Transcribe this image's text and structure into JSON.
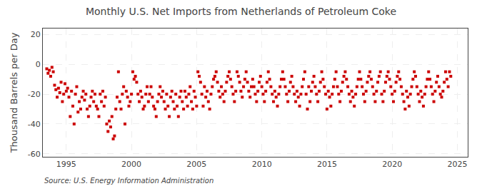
{
  "chart_data": {
    "type": "scatter",
    "title": "Monthly U.S. Net Imports from Netherlands of Petroleum Coke",
    "ylabel": "Thousand Barrels per Day",
    "annotations": [
      "Source: U.S. Energy Information Administration"
    ],
    "color": "#cc0000",
    "marker": "square",
    "grid": true,
    "xlim": [
      1993.2,
      2025.8
    ],
    "ylim": [
      -62,
      24
    ],
    "xticks": [
      1995,
      2000,
      2005,
      2010,
      2015,
      2020,
      2025
    ],
    "yticks": [
      -60,
      -40,
      -20,
      0,
      20
    ],
    "x": [
      1993.5,
      1993.6,
      1993.7,
      1993.8,
      1993.9,
      1994.0,
      1994.1,
      1994.2,
      1994.3,
      1994.4,
      1994.5,
      1994.6,
      1994.7,
      1994.8,
      1994.9,
      1995.0,
      1995.1,
      1995.2,
      1995.3,
      1995.4,
      1995.5,
      1995.6,
      1995.7,
      1995.8,
      1995.9,
      1996.0,
      1996.1,
      1996.2,
      1996.3,
      1996.4,
      1996.5,
      1996.6,
      1996.7,
      1996.8,
      1996.9,
      1997.0,
      1997.1,
      1997.2,
      1997.3,
      1997.4,
      1997.5,
      1997.6,
      1997.7,
      1997.8,
      1997.9,
      1998.0,
      1998.1,
      1998.2,
      1998.3,
      1998.4,
      1998.5,
      1998.6,
      1998.7,
      1998.8,
      1998.9,
      1999.0,
      1999.1,
      1999.2,
      1999.3,
      1999.4,
      1999.5,
      1999.6,
      1999.7,
      1999.8,
      1999.9,
      2000.0,
      2000.1,
      2000.2,
      2000.3,
      2000.4,
      2000.5,
      2000.6,
      2000.7,
      2000.8,
      2000.9,
      2001.0,
      2001.1,
      2001.2,
      2001.3,
      2001.4,
      2001.5,
      2001.6,
      2001.7,
      2001.8,
      2001.9,
      2002.0,
      2002.1,
      2002.2,
      2002.3,
      2002.4,
      2002.5,
      2002.6,
      2002.7,
      2002.8,
      2002.9,
      2003.0,
      2003.1,
      2003.2,
      2003.3,
      2003.4,
      2003.5,
      2003.6,
      2003.7,
      2003.8,
      2003.9,
      2004.0,
      2004.1,
      2004.2,
      2004.3,
      2004.4,
      2004.5,
      2004.6,
      2004.7,
      2004.8,
      2004.9,
      2005.0,
      2005.1,
      2005.2,
      2005.3,
      2005.4,
      2005.5,
      2005.6,
      2005.7,
      2005.8,
      2005.9,
      2006.0,
      2006.1,
      2006.2,
      2006.3,
      2006.4,
      2006.5,
      2006.6,
      2006.7,
      2006.8,
      2006.9,
      2007.0,
      2007.1,
      2007.2,
      2007.3,
      2007.4,
      2007.5,
      2007.6,
      2007.7,
      2007.8,
      2007.9,
      2008.0,
      2008.1,
      2008.2,
      2008.3,
      2008.4,
      2008.5,
      2008.6,
      2008.7,
      2008.8,
      2008.9,
      2009.0,
      2009.1,
      2009.2,
      2009.3,
      2009.4,
      2009.5,
      2009.6,
      2009.7,
      2009.8,
      2009.9,
      2010.0,
      2010.1,
      2010.2,
      2010.3,
      2010.4,
      2010.5,
      2010.6,
      2010.7,
      2010.8,
      2010.9,
      2011.0,
      2011.1,
      2011.2,
      2011.3,
      2011.4,
      2011.5,
      2011.6,
      2011.7,
      2011.8,
      2011.9,
      2012.0,
      2012.1,
      2012.2,
      2012.3,
      2012.4,
      2012.5,
      2012.6,
      2012.7,
      2012.8,
      2012.9,
      2013.0,
      2013.1,
      2013.2,
      2013.3,
      2013.4,
      2013.5,
      2013.6,
      2013.7,
      2013.8,
      2013.9,
      2014.0,
      2014.1,
      2014.2,
      2014.3,
      2014.4,
      2014.5,
      2014.6,
      2014.7,
      2014.8,
      2014.9,
      2015.0,
      2015.1,
      2015.2,
      2015.3,
      2015.4,
      2015.5,
      2015.6,
      2015.7,
      2015.8,
      2015.9,
      2016.0,
      2016.1,
      2016.2,
      2016.3,
      2016.4,
      2016.5,
      2016.6,
      2016.7,
      2016.8,
      2016.9,
      2017.0,
      2017.1,
      2017.2,
      2017.3,
      2017.4,
      2017.5,
      2017.6,
      2017.7,
      2017.8,
      2017.9,
      2018.0,
      2018.1,
      2018.2,
      2018.3,
      2018.4,
      2018.5,
      2018.6,
      2018.7,
      2018.8,
      2018.9,
      2019.0,
      2019.1,
      2019.2,
      2019.3,
      2019.4,
      2019.5,
      2019.6,
      2019.7,
      2019.8,
      2019.9,
      2020.0,
      2020.1,
      2020.2,
      2020.3,
      2020.4,
      2020.5,
      2020.6,
      2020.7,
      2020.8,
      2020.9,
      2021.0,
      2021.1,
      2021.2,
      2021.3,
      2021.4,
      2021.5,
      2021.6,
      2021.7,
      2021.8,
      2021.9,
      2022.0,
      2022.1,
      2022.2,
      2022.3,
      2022.4,
      2022.5,
      2022.6,
      2022.7,
      2022.8,
      2022.9,
      2023.0,
      2023.1,
      2023.2,
      2023.3,
      2023.4,
      2023.5,
      2023.6,
      2023.7,
      2023.8,
      2023.9,
      2024.0,
      2024.1,
      2024.2,
      2024.3,
      2024.4,
      2024.5
    ],
    "values": [
      -3,
      -6,
      -4,
      -8,
      -2,
      -5,
      -14,
      -17,
      -22,
      -16,
      -19,
      -12,
      -25,
      -20,
      -13,
      -18,
      -16,
      -22,
      -35,
      -18,
      -28,
      -40,
      -20,
      -15,
      -32,
      -25,
      -30,
      -22,
      -18,
      -24,
      -20,
      -30,
      -35,
      -28,
      -22,
      -18,
      -25,
      -20,
      -28,
      -30,
      -35,
      -20,
      -25,
      -18,
      -28,
      -22,
      -40,
      -45,
      -38,
      -42,
      -35,
      -50,
      -48,
      -30,
      -22,
      -5,
      -25,
      -30,
      -20,
      -15,
      -40,
      -18,
      -22,
      -28,
      -25,
      -20,
      -5,
      -10,
      -8,
      -12,
      -20,
      -25,
      -18,
      -22,
      -30,
      -28,
      -20,
      -15,
      -25,
      -20,
      -15,
      -22,
      -28,
      -30,
      -35,
      -25,
      -20,
      -15,
      -22,
      -18,
      -25,
      -30,
      -20,
      -28,
      -35,
      -22,
      -18,
      -25,
      -30,
      -20,
      -28,
      -35,
      -22,
      -18,
      -25,
      -30,
      -18,
      -22,
      -28,
      -20,
      -15,
      -25,
      -30,
      -18,
      -22,
      -28,
      -5,
      -8,
      -12,
      -20,
      -28,
      -15,
      -22,
      -18,
      -25,
      -30,
      -20,
      -15,
      -10,
      -8,
      -5,
      -12,
      -18,
      -22,
      -15,
      -20,
      -25,
      -18,
      -12,
      -8,
      -5,
      -10,
      -15,
      -20,
      -25,
      -18,
      -5,
      -8,
      -12,
      -18,
      -22,
      -15,
      -10,
      -5,
      -12,
      -18,
      -22,
      -15,
      -10,
      -15,
      -20,
      -25,
      -18,
      -12,
      -8,
      -15,
      -20,
      -25,
      -18,
      -12,
      -5,
      -10,
      -15,
      -20,
      -25,
      -18,
      -22,
      -28,
      -20,
      -15,
      -10,
      -5,
      -10,
      -15,
      -20,
      -25,
      -18,
      -12,
      -8,
      -15,
      -20,
      -25,
      -18,
      -22,
      -28,
      -20,
      -15,
      -10,
      -5,
      -20,
      -30,
      -15,
      -25,
      -18,
      -12,
      -8,
      -15,
      -20,
      -25,
      -18,
      -12,
      -5,
      -10,
      -15,
      -20,
      -30,
      -18,
      -22,
      -28,
      -20,
      -15,
      -10,
      -5,
      -15,
      -20,
      -25,
      -18,
      -12,
      -8,
      -5,
      -10,
      -15,
      -20,
      -25,
      -18,
      -22,
      -28,
      -20,
      -15,
      -10,
      -5,
      -10,
      -15,
      -20,
      -25,
      -18,
      -12,
      -8,
      -5,
      -10,
      -15,
      -20,
      -25,
      -18,
      -12,
      -8,
      -5,
      -20,
      -25,
      -18,
      -12,
      -8,
      -5,
      -10,
      -15,
      -20,
      -25,
      -18,
      -12,
      -8,
      -5,
      -10,
      -15,
      -20,
      -25,
      -30,
      -18,
      -22,
      -28,
      -20,
      -15,
      -10,
      -5,
      -8,
      -15,
      -20,
      -25,
      -18,
      -22,
      -28,
      -20,
      -15,
      -10,
      -5,
      -10,
      -15,
      -20,
      -25,
      -18,
      -12,
      -8,
      -15,
      -20,
      -22,
      -18,
      -12,
      -5,
      -10,
      -15,
      -5,
      -8
    ]
  }
}
